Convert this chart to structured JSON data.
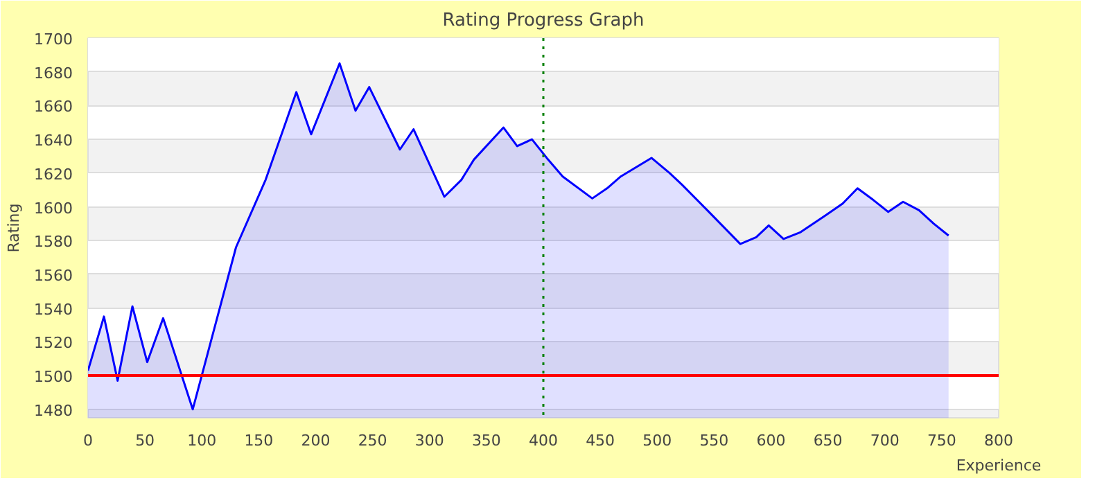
{
  "chart_data": {
    "type": "area",
    "title": "Rating Progress Graph",
    "xlabel": "Experience",
    "ylabel": "Rating",
    "series": [
      {
        "color": "#0000ff",
        "x": [
          0,
          14,
          26,
          39,
          52,
          66,
          92,
          130,
          156,
          183,
          196,
          221,
          235,
          247,
          274,
          286,
          313,
          328,
          339,
          365,
          377,
          390,
          403,
          417,
          443,
          456,
          468,
          495,
          511,
          522,
          544,
          573,
          587,
          598,
          611,
          626,
          648,
          663,
          676,
          690,
          703,
          716,
          730,
          743,
          756
        ],
        "values": [
          1503,
          1535,
          1497,
          1541,
          1508,
          1534,
          1480,
          1576,
          1616,
          1668,
          1643,
          1685,
          1657,
          1671,
          1634,
          1646,
          1606,
          1616,
          1628,
          1647,
          1636,
          1640,
          1629,
          1618,
          1605,
          1611,
          1618,
          1629,
          1620,
          1613,
          1598,
          1578,
          1582,
          1589,
          1581,
          1585,
          1595,
          1602,
          1611,
          1604,
          1597,
          1603,
          1598,
          1590,
          1583
        ]
      }
    ],
    "ref_lines": [
      {
        "axis": "y",
        "value": 1500,
        "color": "#ff0000",
        "line_style": "solid"
      },
      {
        "axis": "x",
        "value": 400,
        "color": "#008000",
        "line_style": "dotted"
      }
    ],
    "xlim": [
      0,
      800
    ],
    "ylim": [
      1475,
      1700
    ],
    "xticks": [
      0,
      50,
      100,
      150,
      200,
      250,
      300,
      350,
      400,
      450,
      500,
      550,
      600,
      650,
      700,
      750,
      800
    ],
    "yticks": [
      1480,
      1500,
      1520,
      1540,
      1560,
      1580,
      1600,
      1620,
      1640,
      1660,
      1680,
      1700
    ],
    "grid": "y"
  }
}
